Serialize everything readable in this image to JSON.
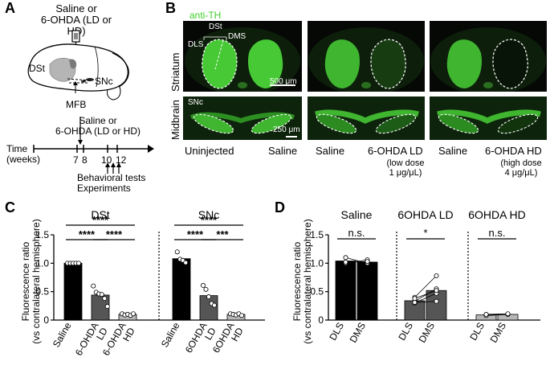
{
  "panels": {
    "A": "A",
    "B": "B",
    "C": "C",
    "D": "D"
  },
  "panelA": {
    "injection": "Saline or\n6-OHDA (LD or HD)",
    "dst": "DSt",
    "snc": "SNc",
    "mfb": "MFB",
    "timeline_injection": "Saline or\n6-OHDA (LD or HD)",
    "time_label": "Time\n(weeks)",
    "ticks": [
      "7",
      "8",
      "10",
      "12"
    ],
    "tests": "Behavioral tests\nExperiments"
  },
  "panelB": {
    "stain": "anti-TH",
    "rows": [
      "Striatum",
      "Midbrain"
    ],
    "region_labels": {
      "dst": "DSt",
      "dls": "DLS",
      "dms": "DMS",
      "snc": "SNc"
    },
    "scalebars": [
      "500 μm",
      "250 μm"
    ],
    "columns": [
      "Uninjected",
      "Saline",
      "Saline",
      "6-OHDA LD",
      "Saline",
      "6-OHDA HD"
    ],
    "ld_note": "(low dose\n1 μg/μL)",
    "hd_note": "(high dose\n4 μg/μL)",
    "colors": {
      "fluor": "#3fcf2a",
      "background": "#050805"
    }
  },
  "chart_data": [
    {
      "id": "C",
      "type": "bar",
      "ylabel": "Fluorescence ratio\n(vs contralateral hemisphere)",
      "ylim": [
        0,
        1.5
      ],
      "yticks": [
        "0",
        "0.5",
        "1.0",
        "1.5"
      ],
      "groups": [
        {
          "title": "DSt",
          "categories": [
            "Saline",
            "6-OHDA\nLD",
            "6-OHDA\nHD"
          ],
          "values": [
            1.0,
            0.44,
            0.1
          ],
          "points": [
            [
              1.0,
              1.0,
              1.0,
              1.0,
              1.0
            ],
            [
              0.6,
              0.49,
              0.46,
              0.45,
              0.38,
              0.24
            ],
            [
              0.11,
              0.09,
              0.1,
              0.08,
              0.11
            ]
          ],
          "colors": [
            "#000000",
            "#555555",
            "#b7b7b7"
          ],
          "sig": [
            "****",
            "****",
            "****"
          ]
        },
        {
          "title": "SNc",
          "categories": [
            "Saline",
            "6OHDA\nLD",
            "6OHDA\nHD"
          ],
          "values": [
            1.08,
            0.43,
            0.1
          ],
          "points": [
            [
              1.2,
              1.07,
              1.05,
              1.01
            ],
            [
              0.61,
              0.54,
              0.41,
              0.29,
              0.26
            ],
            [
              0.11,
              0.1,
              0.09,
              0.11,
              0.08
            ]
          ],
          "colors": [
            "#000000",
            "#555555",
            "#b7b7b7"
          ],
          "sig": [
            "****",
            "****",
            "***"
          ]
        }
      ]
    },
    {
      "id": "D",
      "type": "bar",
      "ylabel": "Fluorescence ratio\n(vs contralateral hemisphere)",
      "ylim": [
        0,
        1.5
      ],
      "yticks": [
        "0",
        "0.5",
        "1.0",
        "1.5"
      ],
      "groups": [
        {
          "title": "Saline",
          "categories": [
            "DLS",
            "DMS"
          ],
          "values": [
            1.04,
            1.02
          ],
          "pairs": [
            [
              1.1,
              1.0
            ],
            [
              1.0,
              1.06
            ],
            [
              1.02,
              1.03
            ]
          ],
          "color": "#000000",
          "sig": "n.s."
        },
        {
          "title": "6OHDA LD",
          "categories": [
            "DLS",
            "DMS"
          ],
          "values": [
            0.34,
            0.52
          ],
          "pairs": [
            [
              0.4,
              0.78
            ],
            [
              0.33,
              0.55
            ],
            [
              0.3,
              0.47
            ],
            [
              0.38,
              0.52
            ],
            [
              0.31,
              0.33
            ]
          ],
          "color": "#555555",
          "sig": "*"
        },
        {
          "title": "6OHDA HD",
          "categories": [
            "DLS",
            "DMS"
          ],
          "values": [
            0.09,
            0.1
          ],
          "pairs": [
            [
              0.09,
              0.1
            ],
            [
              0.08,
              0.1
            ],
            [
              0.1,
              0.11
            ]
          ],
          "color": "#b7b7b7",
          "sig": "n.s."
        }
      ]
    }
  ]
}
